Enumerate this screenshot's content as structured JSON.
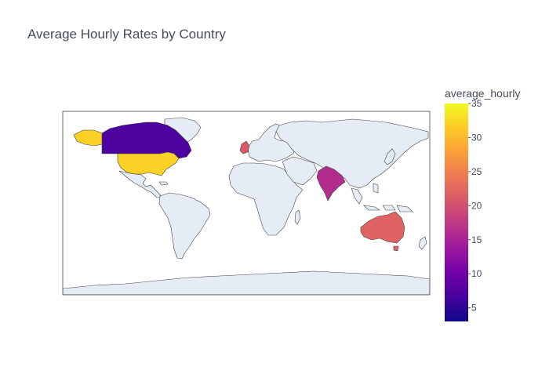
{
  "chart_data": {
    "type": "choropleth",
    "title": "Average Hourly Rates by Country",
    "colorbar_title": "average_hourly",
    "colorscale": [
      "#0d0887",
      "#46039f",
      "#7201a8",
      "#9c179e",
      "#bd3786",
      "#d8576b",
      "#ed7953",
      "#fb9f3a",
      "#fdca26",
      "#f0f921"
    ],
    "color_range": [
      3,
      35
    ],
    "colorbar_ticks": [
      5,
      10,
      15,
      20,
      25,
      30,
      35
    ],
    "countries": [
      {
        "name": "United States",
        "value": 32
      },
      {
        "name": "Canada",
        "value": 7
      },
      {
        "name": "United Kingdom",
        "value": 21
      },
      {
        "name": "India",
        "value": 16
      },
      {
        "name": "Australia",
        "value": 22
      }
    ]
  }
}
